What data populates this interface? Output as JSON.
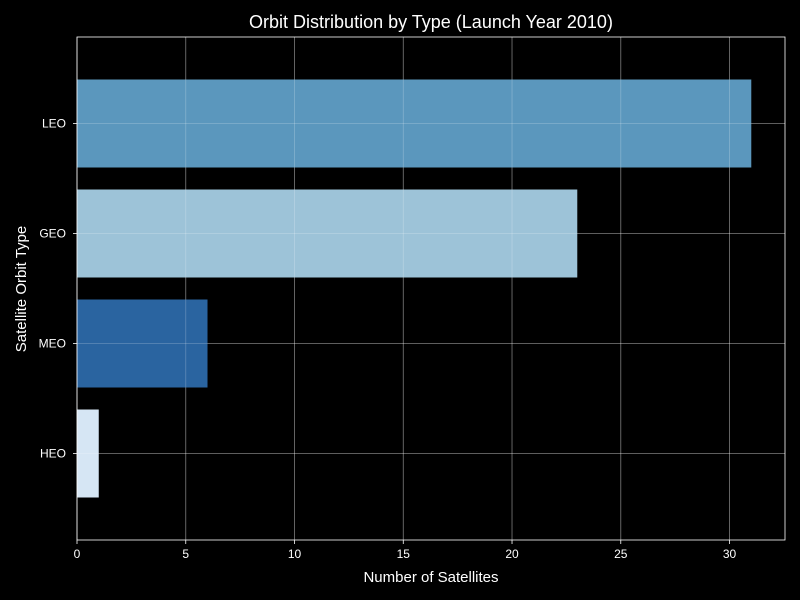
{
  "chart_data": {
    "type": "bar",
    "orientation": "horizontal",
    "title": "Orbit Distribution by Type (Launch Year 2010)",
    "xlabel": "Number of Satellites",
    "ylabel": "Satellite Orbit Type",
    "categories": [
      "LEO",
      "GEO",
      "MEO",
      "HEO"
    ],
    "values": [
      31,
      23,
      6,
      1
    ],
    "colors": [
      "#5b97bd",
      "#9dc3d8",
      "#2a64a0",
      "#d6e6f4"
    ],
    "xlim": [
      0,
      32.55
    ],
    "xticks": [
      0,
      5,
      10,
      15,
      20,
      25,
      30
    ],
    "xtick_labels": [
      "0",
      "5",
      "10",
      "15",
      "20",
      "25",
      "30"
    ],
    "grid": true,
    "background": "#000000",
    "text_color": "#ffffff"
  }
}
